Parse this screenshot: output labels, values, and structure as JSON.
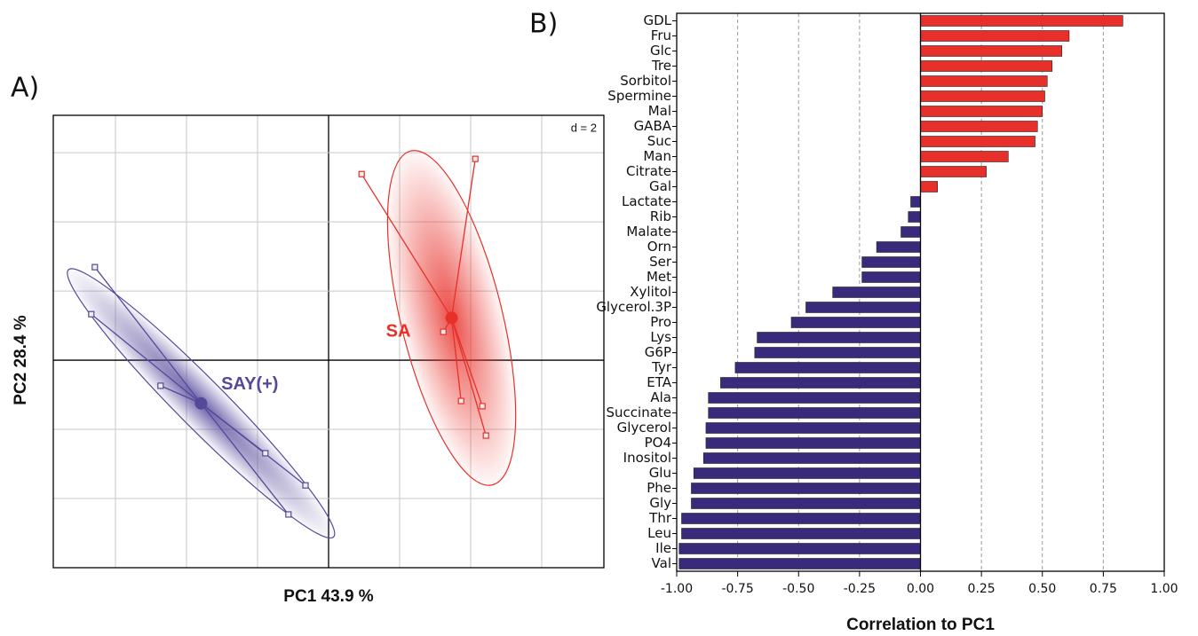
{
  "chart_data": [
    {
      "type": "scatter",
      "panel_label": "A)",
      "annotation": "d = 2",
      "x_label": "PC1  43.9 %",
      "y_label": "PC2  28.4 %",
      "xlim": [
        -7.75,
        7.75
      ],
      "ylim": [
        -6.0,
        7.08
      ],
      "xticks": [
        -6,
        -4,
        -2,
        0,
        2,
        4,
        6
      ],
      "yticks": [
        -4,
        -2,
        0,
        2,
        4,
        6
      ],
      "grid": true,
      "series": [
        {
          "name": "SAY(+)",
          "color": "#54489a",
          "x": [
            -6.58,
            -6.68,
            -4.73,
            -1.78,
            -0.65,
            -1.13
          ],
          "values": [
            2.69,
            1.33,
            -0.74,
            -2.69,
            -3.62,
            -4.46
          ]
        },
        {
          "name": "SA",
          "color": "#e8302a",
          "x": [
            0.93,
            4.13,
            3.23,
            3.73,
            4.33,
            4.43
          ],
          "values": [
            5.38,
            5.82,
            0.82,
            -1.18,
            -1.33,
            -2.18
          ]
        }
      ]
    },
    {
      "type": "barh",
      "panel_label": "B)",
      "x_label": "Correlation to PC1",
      "categories": [
        "GDL",
        "Fru",
        "Glc",
        "Tre",
        "Sorbitol",
        "Spermine",
        "Mal",
        "GABA",
        "Suc",
        "Man",
        "Citrate",
        "Gal",
        "Lactate",
        "Rib",
        "Malate",
        "Orn",
        "Ser",
        "Met",
        "Xylitol",
        "Glycerol.3P",
        "Pro",
        "Lys",
        "G6P",
        "Tyr",
        "ETA",
        "Ala",
        "Succinate",
        "Glycerol",
        "PO4",
        "Inositol",
        "Glu",
        "Phe",
        "Gly",
        "Thr",
        "Leu",
        "Ile",
        "Val"
      ],
      "values": [
        0.83,
        0.61,
        0.58,
        0.54,
        0.52,
        0.51,
        0.5,
        0.48,
        0.47,
        0.36,
        0.27,
        0.07,
        -0.04,
        -0.05,
        -0.08,
        -0.18,
        -0.24,
        -0.24,
        -0.36,
        -0.47,
        -0.53,
        -0.67,
        -0.68,
        -0.76,
        -0.82,
        -0.87,
        -0.87,
        -0.88,
        -0.88,
        -0.89,
        -0.93,
        -0.94,
        -0.94,
        -0.98,
        -0.98,
        -0.99,
        -0.99
      ],
      "color_positive": "#e8302a",
      "color_negative": "#3a2a7c",
      "xlim": [
        -1,
        1
      ],
      "xticks": [
        {
          "value": -1,
          "label": "-1.00"
        },
        {
          "value": -0.75,
          "label": "-0.75"
        },
        {
          "value": -0.5,
          "label": "-0.50"
        },
        {
          "value": -0.25,
          "label": "-0.25"
        },
        {
          "value": 0,
          "label": "0.00"
        },
        {
          "value": 0.25,
          "label": "0.25"
        },
        {
          "value": 0.5,
          "label": "0.50"
        },
        {
          "value": 0.75,
          "label": "0.75"
        },
        {
          "value": 1,
          "label": "1.00"
        }
      ],
      "grid": true
    }
  ]
}
